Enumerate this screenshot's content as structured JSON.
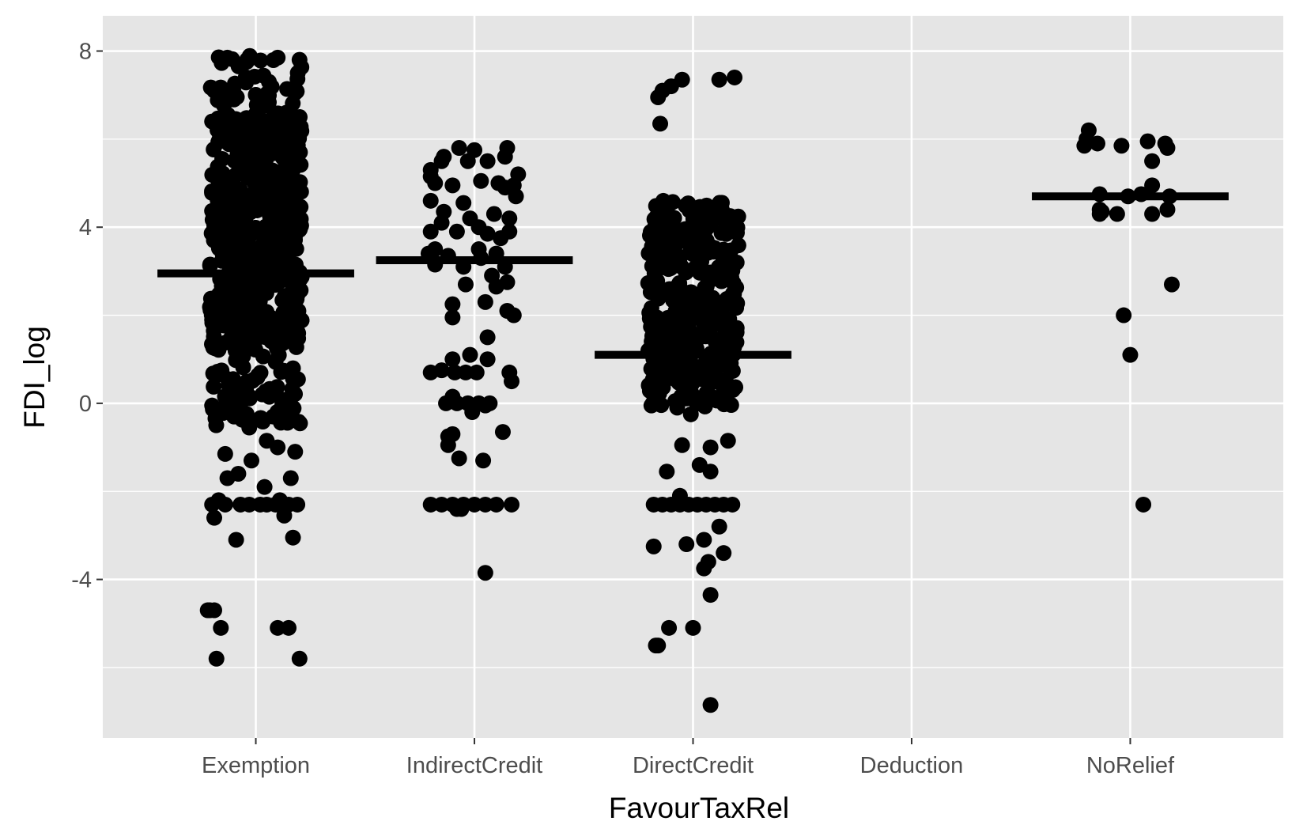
{
  "chart_data": {
    "type": "scatter",
    "subtype": "jittered strip plot with median crossbars",
    "xlabel": "FavourTaxRel",
    "ylabel": "FDI_log",
    "categories": [
      "Exemption",
      "IndirectCredit",
      "DirectCredit",
      "Deduction",
      "NoRelief"
    ],
    "ylim": [
      -7.6,
      8.8
    ],
    "yticks": [
      -4,
      0,
      4,
      8
    ],
    "ytick_labels": [
      "-4",
      "0",
      "4",
      "8"
    ],
    "grid": true,
    "panel_background": "#e5e5e5",
    "grid_color": "#ffffff",
    "point_color": "#000000",
    "medians": [
      {
        "category": "Exemption",
        "value": 2.95
      },
      {
        "category": "IndirectCredit",
        "value": 3.25
      },
      {
        "category": "DirectCredit",
        "value": 1.1
      },
      {
        "category": "NoRelief",
        "value": 4.7
      }
    ],
    "series": [
      {
        "category": "Exemption",
        "jitter_seed": 11,
        "points": [
          [
            -0.18,
            -5.8
          ],
          [
            0.2,
            -5.8
          ],
          [
            -0.16,
            -5.1
          ],
          [
            0.1,
            -5.1
          ],
          [
            0.15,
            -5.1
          ],
          [
            -0.22,
            -4.7
          ],
          [
            -0.21,
            -4.7
          ],
          [
            -0.19,
            -4.7
          ],
          [
            -0.09,
            -3.1
          ],
          [
            0.17,
            -3.05
          ],
          [
            -0.19,
            -2.6
          ],
          [
            0.13,
            -2.55
          ],
          [
            -0.2,
            -2.3
          ],
          [
            -0.14,
            -2.3
          ],
          [
            -0.07,
            -2.3
          ],
          [
            -0.03,
            -2.3
          ],
          [
            0.02,
            -2.3
          ],
          [
            0.05,
            -2.3
          ],
          [
            0.09,
            -2.3
          ],
          [
            0.15,
            -2.3
          ],
          [
            0.19,
            -2.3
          ],
          [
            -0.17,
            -2.2
          ],
          [
            0.11,
            -2.2
          ],
          [
            -0.13,
            -1.7
          ],
          [
            0.16,
            -1.7
          ],
          [
            -0.08,
            -1.6
          ],
          [
            0.04,
            -1.9
          ],
          [
            -0.14,
            -1.15
          ],
          [
            0.1,
            -1.0
          ],
          [
            0.18,
            -1.1
          ],
          [
            -0.02,
            -1.3
          ],
          [
            0.05,
            -0.85
          ],
          [
            -0.03,
            -0.55
          ],
          [
            0.08,
            -0.3
          ],
          [
            -0.1,
            -0.3
          ],
          [
            -0.2,
            -0.05
          ],
          [
            0.17,
            0.2
          ],
          [
            -0.05,
            0.1
          ],
          [
            0.2,
            7.8
          ],
          [
            -0.13,
            7.85
          ],
          [
            0.1,
            7.85
          ],
          [
            -0.04,
            7.8
          ],
          [
            0.06,
            7.3
          ],
          [
            -0.19,
            7.1
          ],
          [
            0.18,
            7.05
          ],
          [
            -0.1,
            6.9
          ],
          [
            0.14,
            6.6
          ],
          [
            -0.2,
            6.4
          ]
        ],
        "band_density": [
          {
            "range": [
              -0.5,
              1.2
            ],
            "count": 70
          },
          {
            "range": [
              1.2,
              6.5
            ],
            "count": 500
          },
          {
            "range": [
              6.5,
              7.9
            ],
            "count": 40
          }
        ]
      },
      {
        "category": "IndirectCredit",
        "jitter_seed": 23,
        "points": [
          [
            0.05,
            -3.85
          ],
          [
            -0.08,
            -2.4
          ],
          [
            -0.2,
            -2.3
          ],
          [
            -0.15,
            -2.3
          ],
          [
            -0.1,
            -2.3
          ],
          [
            -0.05,
            -2.3
          ],
          [
            0.0,
            -2.3
          ],
          [
            0.05,
            -2.3
          ],
          [
            0.1,
            -2.3
          ],
          [
            0.17,
            -2.3
          ],
          [
            -0.06,
            -2.4
          ],
          [
            0.04,
            -1.3
          ],
          [
            -0.07,
            -1.25
          ],
          [
            -0.12,
            -0.95
          ],
          [
            -0.12,
            -0.75
          ],
          [
            -0.1,
            -0.7
          ],
          [
            0.13,
            -0.65
          ],
          [
            -0.01,
            -0.2
          ],
          [
            0.05,
            -0.05
          ],
          [
            -0.13,
            0.0
          ],
          [
            -0.08,
            0.0
          ],
          [
            -0.03,
            0.0
          ],
          [
            0.02,
            0.0
          ],
          [
            0.07,
            0.0
          ],
          [
            -0.1,
            0.15
          ],
          [
            0.17,
            0.5
          ],
          [
            -0.2,
            0.7
          ],
          [
            -0.15,
            0.75
          ],
          [
            -0.09,
            0.7
          ],
          [
            -0.04,
            0.7
          ],
          [
            0.01,
            0.7
          ],
          [
            0.16,
            0.7
          ],
          [
            -0.1,
            1.0
          ],
          [
            -0.02,
            1.1
          ],
          [
            0.06,
            1.0
          ],
          [
            0.06,
            1.5
          ],
          [
            -0.1,
            1.95
          ],
          [
            0.18,
            2.0
          ],
          [
            -0.1,
            2.25
          ],
          [
            0.05,
            2.3
          ],
          [
            0.15,
            2.1
          ],
          [
            0.1,
            2.65
          ],
          [
            0.15,
            2.75
          ],
          [
            -0.04,
            2.7
          ],
          [
            0.08,
            2.9
          ],
          [
            0.14,
            3.1
          ],
          [
            -0.18,
            3.15
          ],
          [
            -0.05,
            3.1
          ],
          [
            -0.21,
            3.4
          ],
          [
            -0.18,
            3.5
          ],
          [
            0.03,
            3.3
          ],
          [
            -0.12,
            3.35
          ],
          [
            0.1,
            3.4
          ],
          [
            0.02,
            3.5
          ],
          [
            -0.2,
            3.9
          ],
          [
            -0.15,
            4.1
          ],
          [
            -0.08,
            3.9
          ],
          [
            0.06,
            3.85
          ],
          [
            0.12,
            3.75
          ],
          [
            0.02,
            4.0
          ],
          [
            0.16,
            3.9
          ],
          [
            -0.14,
            4.35
          ],
          [
            -0.02,
            4.2
          ],
          [
            0.09,
            4.3
          ],
          [
            0.16,
            4.2
          ],
          [
            -0.05,
            4.55
          ],
          [
            -0.2,
            4.6
          ],
          [
            0.19,
            4.7
          ],
          [
            0.14,
            4.9
          ],
          [
            -0.1,
            4.95
          ],
          [
            -0.18,
            5.0
          ],
          [
            0.03,
            5.05
          ],
          [
            0.11,
            5.0
          ],
          [
            0.18,
            4.95
          ],
          [
            0.2,
            5.2
          ],
          [
            -0.2,
            5.15
          ],
          [
            -0.2,
            5.3
          ],
          [
            -0.15,
            5.5
          ],
          [
            -0.14,
            5.6
          ],
          [
            -0.03,
            5.5
          ],
          [
            0.06,
            5.5
          ],
          [
            0.14,
            5.6
          ],
          [
            -0.07,
            5.8
          ],
          [
            0.0,
            5.75
          ],
          [
            0.15,
            5.8
          ]
        ]
      },
      {
        "category": "DirectCredit",
        "jitter_seed": 37,
        "points": [
          [
            0.08,
            -6.85
          ],
          [
            -0.17,
            -5.5
          ],
          [
            -0.16,
            -5.5
          ],
          [
            -0.11,
            -5.1
          ],
          [
            0.0,
            -5.1
          ],
          [
            0.08,
            -4.35
          ],
          [
            0.05,
            -3.75
          ],
          [
            0.07,
            -3.6
          ],
          [
            -0.18,
            -3.25
          ],
          [
            -0.03,
            -3.2
          ],
          [
            0.14,
            -3.4
          ],
          [
            0.12,
            -2.8
          ],
          [
            0.05,
            -3.1
          ],
          [
            -0.18,
            -2.3
          ],
          [
            -0.14,
            -2.3
          ],
          [
            -0.1,
            -2.3
          ],
          [
            -0.06,
            -2.3
          ],
          [
            -0.02,
            -2.3
          ],
          [
            0.02,
            -2.3
          ],
          [
            0.06,
            -2.3
          ],
          [
            0.1,
            -2.3
          ],
          [
            0.14,
            -2.3
          ],
          [
            0.18,
            -2.3
          ],
          [
            -0.06,
            -2.1
          ],
          [
            -0.12,
            -1.55
          ],
          [
            0.03,
            -1.4
          ],
          [
            0.08,
            -1.55
          ],
          [
            0.08,
            -1.0
          ],
          [
            0.16,
            -0.85
          ],
          [
            -0.05,
            -0.95
          ],
          [
            -0.01,
            -0.25
          ],
          [
            0.12,
            1.0
          ],
          [
            -0.16,
            6.95
          ],
          [
            -0.14,
            7.1
          ],
          [
            -0.1,
            7.2
          ],
          [
            -0.05,
            7.35
          ],
          [
            0.12,
            7.35
          ],
          [
            0.19,
            7.4
          ],
          [
            -0.15,
            6.35
          ]
        ],
        "band_density": [
          {
            "range": [
              -0.1,
              1.5
            ],
            "count": 120
          },
          {
            "range": [
              1.5,
              4.6
            ],
            "count": 220
          }
        ]
      },
      {
        "category": "Deduction",
        "points": []
      },
      {
        "category": "NoRelief",
        "points": [
          [
            -0.21,
            5.85
          ],
          [
            -0.2,
            6.0
          ],
          [
            -0.19,
            6.2
          ],
          [
            -0.14,
            4.75
          ],
          [
            -0.14,
            4.4
          ],
          [
            -0.14,
            4.3
          ],
          [
            -0.13,
            4.35
          ],
          [
            -0.15,
            5.9
          ],
          [
            -0.04,
            5.85
          ],
          [
            -0.06,
            4.3
          ],
          [
            -0.03,
            2.0
          ],
          [
            0.08,
            5.95
          ],
          [
            0.1,
            5.5
          ],
          [
            0.16,
            5.9
          ],
          [
            0.17,
            5.8
          ],
          [
            0.1,
            4.95
          ],
          [
            0.05,
            4.75
          ],
          [
            0.18,
            4.7
          ],
          [
            0.1,
            4.3
          ],
          [
            0.17,
            4.4
          ],
          [
            -0.01,
            4.7
          ],
          [
            0.0,
            1.1
          ],
          [
            0.06,
            -2.3
          ],
          [
            0.19,
            2.7
          ]
        ]
      }
    ]
  }
}
